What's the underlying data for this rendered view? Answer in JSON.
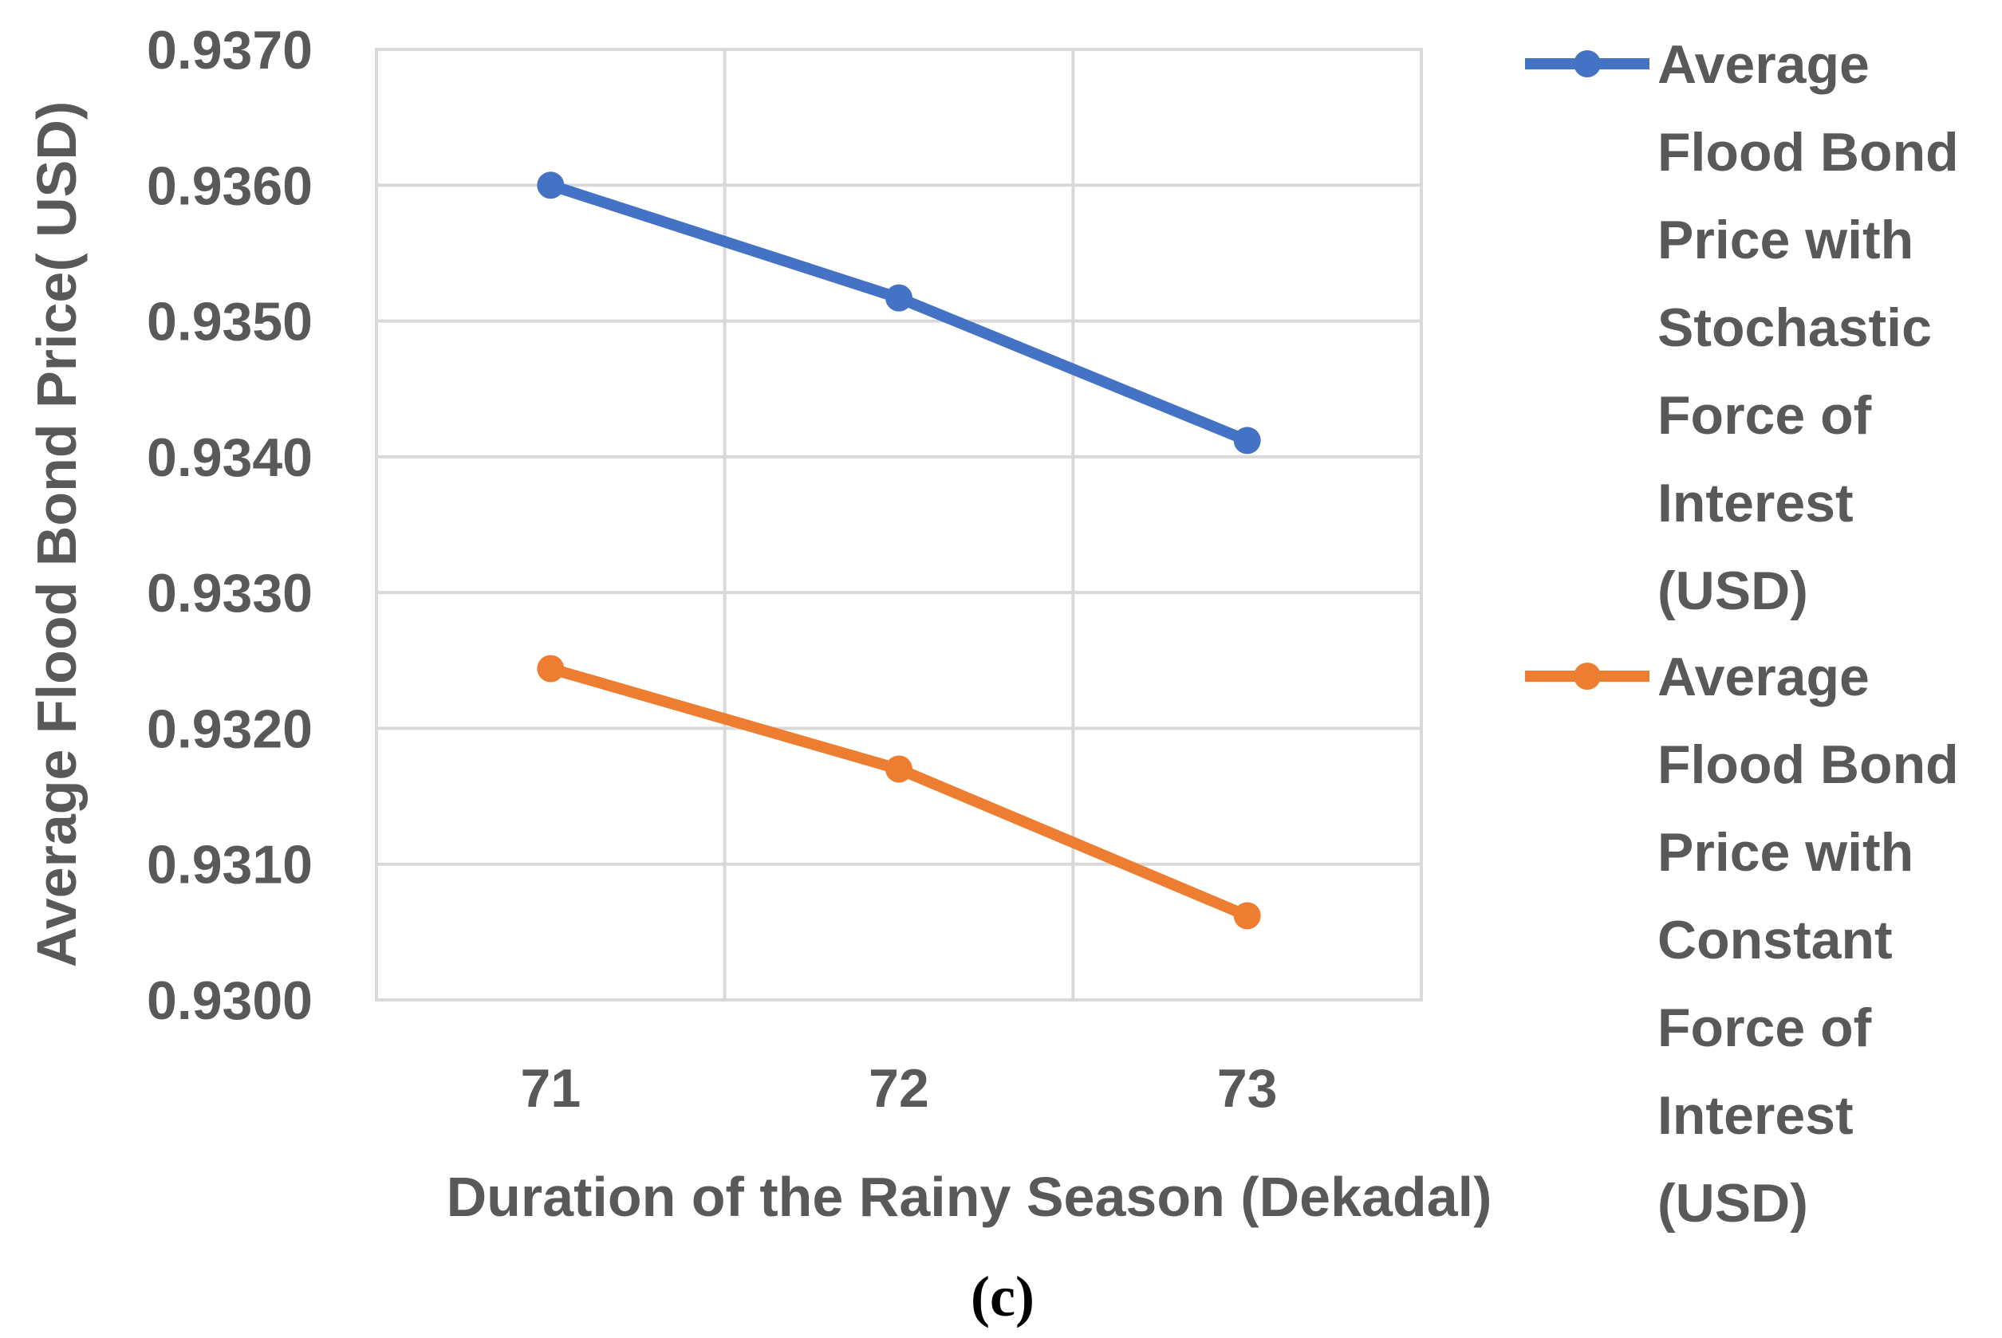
{
  "chart_data": {
    "type": "line",
    "title": "",
    "xlabel": "Duration of the Rainy Season (Dekadal)",
    "ylabel": "Average Flood Bond Price( USD)",
    "categories": [
      "71",
      "72",
      "73"
    ],
    "ylim": [
      0.93,
      0.937
    ],
    "yticks": [
      "0.9300",
      "0.9310",
      "0.9320",
      "0.9330",
      "0.9340",
      "0.9350",
      "0.9360",
      "0.9370"
    ],
    "grid": true,
    "legend_position": "right",
    "series": [
      {
        "name": "Average Flood Bond Price with Stochastic Force of Interest (USD)",
        "legend_lines": [
          "Average",
          "Flood Bond",
          "Price with",
          "Stochastic",
          "Force of",
          "Interest",
          "(USD)"
        ],
        "color": "#4472C4",
        "values": [
          0.936,
          0.93517,
          0.93412
        ]
      },
      {
        "name": "Average Flood Bond Price with Constant Force of Interest (USD)",
        "legend_lines": [
          "Average",
          "Flood Bond",
          "Price with",
          "Constant",
          "Force of",
          "Interest",
          "(USD)"
        ],
        "color": "#ED7D31",
        "values": [
          0.93244,
          0.9317,
          0.93062
        ]
      }
    ],
    "caption": "(c)"
  }
}
